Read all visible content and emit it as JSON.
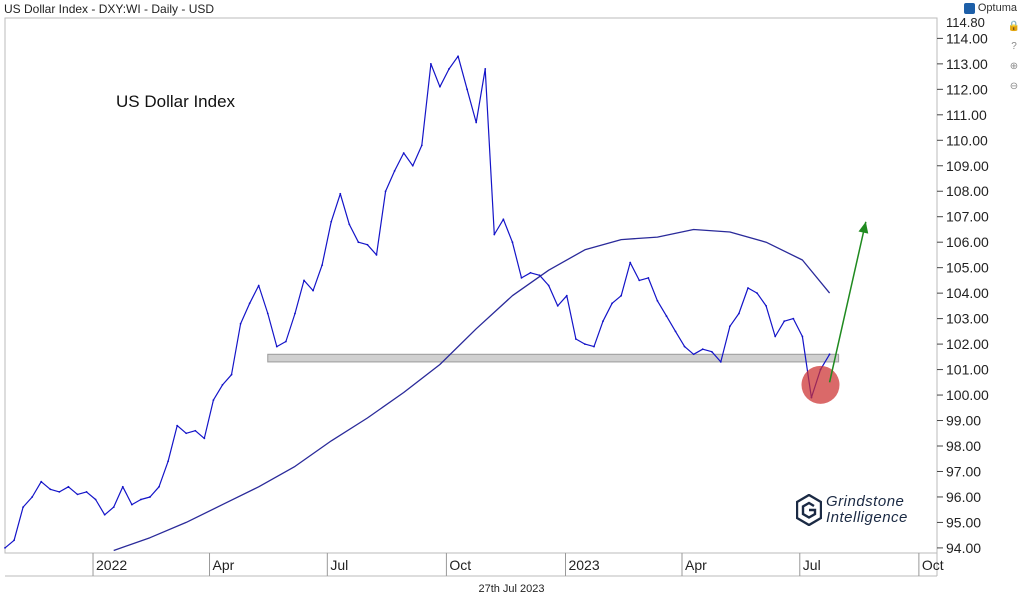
{
  "header": {
    "title": "US Dollar Index - DXY:WI - Daily - USD",
    "brand": "Optuma",
    "brand_icon": "optuma-logo-icon"
  },
  "annotation": "US Dollar Index",
  "watermark": {
    "line1": "Grindstone",
    "line2": "Intelligence"
  },
  "date_label": "27th Jul 2023",
  "side_icons": [
    "lock-icon",
    "question-icon",
    "zoom-in-icon",
    "zoom-out-icon"
  ],
  "chart_data": {
    "type": "line",
    "title": "US Dollar Index - DXY:WI - Daily - USD",
    "series": [
      {
        "kind": "price",
        "color": "#1414c8",
        "points": [
          [
            "2021-10-25",
            94.0
          ],
          [
            "2021-11-01",
            94.3
          ],
          [
            "2021-11-08",
            95.6
          ],
          [
            "2021-11-15",
            96.0
          ],
          [
            "2021-11-22",
            96.6
          ],
          [
            "2021-11-29",
            96.3
          ],
          [
            "2021-12-06",
            96.2
          ],
          [
            "2021-12-13",
            96.4
          ],
          [
            "2021-12-20",
            96.1
          ],
          [
            "2021-12-27",
            96.2
          ],
          [
            "2022-01-03",
            95.9
          ],
          [
            "2022-01-10",
            95.3
          ],
          [
            "2022-01-17",
            95.6
          ],
          [
            "2022-01-24",
            96.4
          ],
          [
            "2022-01-31",
            95.7
          ],
          [
            "2022-02-07",
            95.9
          ],
          [
            "2022-02-14",
            96.0
          ],
          [
            "2022-02-21",
            96.4
          ],
          [
            "2022-02-28",
            97.4
          ],
          [
            "2022-03-07",
            98.8
          ],
          [
            "2022-03-14",
            98.5
          ],
          [
            "2022-03-21",
            98.6
          ],
          [
            "2022-03-28",
            98.3
          ],
          [
            "2022-04-04",
            99.8
          ],
          [
            "2022-04-11",
            100.4
          ],
          [
            "2022-04-18",
            100.8
          ],
          [
            "2022-04-25",
            102.8
          ],
          [
            "2022-05-02",
            103.6
          ],
          [
            "2022-05-09",
            104.3
          ],
          [
            "2022-05-16",
            103.2
          ],
          [
            "2022-05-23",
            101.9
          ],
          [
            "2022-05-30",
            102.1
          ],
          [
            "2022-06-06",
            103.2
          ],
          [
            "2022-06-13",
            104.5
          ],
          [
            "2022-06-20",
            104.1
          ],
          [
            "2022-06-27",
            105.1
          ],
          [
            "2022-07-04",
            106.8
          ],
          [
            "2022-07-11",
            107.9
          ],
          [
            "2022-07-18",
            106.7
          ],
          [
            "2022-07-25",
            106.0
          ],
          [
            "2022-08-01",
            105.9
          ],
          [
            "2022-08-08",
            105.5
          ],
          [
            "2022-08-15",
            108.0
          ],
          [
            "2022-08-22",
            108.8
          ],
          [
            "2022-08-29",
            109.5
          ],
          [
            "2022-09-05",
            109.0
          ],
          [
            "2022-09-12",
            109.8
          ],
          [
            "2022-09-19",
            113.0
          ],
          [
            "2022-09-26",
            112.1
          ],
          [
            "2022-10-03",
            112.8
          ],
          [
            "2022-10-10",
            113.3
          ],
          [
            "2022-10-17",
            112.0
          ],
          [
            "2022-10-24",
            110.7
          ],
          [
            "2022-10-31",
            112.8
          ],
          [
            "2022-11-07",
            106.3
          ],
          [
            "2022-11-14",
            106.9
          ],
          [
            "2022-11-21",
            106.0
          ],
          [
            "2022-11-28",
            104.6
          ],
          [
            "2022-12-05",
            104.8
          ],
          [
            "2022-12-12",
            104.7
          ],
          [
            "2022-12-19",
            104.3
          ],
          [
            "2022-12-26",
            103.5
          ],
          [
            "2023-01-02",
            103.9
          ],
          [
            "2023-01-09",
            102.2
          ],
          [
            "2023-01-16",
            102.0
          ],
          [
            "2023-01-23",
            101.9
          ],
          [
            "2023-01-30",
            102.9
          ],
          [
            "2023-02-06",
            103.6
          ],
          [
            "2023-02-13",
            103.9
          ],
          [
            "2023-02-20",
            105.2
          ],
          [
            "2023-02-27",
            104.5
          ],
          [
            "2023-03-06",
            104.6
          ],
          [
            "2023-03-13",
            103.7
          ],
          [
            "2023-03-20",
            103.1
          ],
          [
            "2023-03-27",
            102.5
          ],
          [
            "2023-04-03",
            101.9
          ],
          [
            "2023-04-10",
            101.6
          ],
          [
            "2023-04-17",
            101.8
          ],
          [
            "2023-04-24",
            101.7
          ],
          [
            "2023-05-01",
            101.3
          ],
          [
            "2023-05-08",
            102.7
          ],
          [
            "2023-05-15",
            103.2
          ],
          [
            "2023-05-22",
            104.2
          ],
          [
            "2023-05-29",
            104.0
          ],
          [
            "2023-06-05",
            103.5
          ],
          [
            "2023-06-12",
            102.3
          ],
          [
            "2023-06-19",
            102.9
          ],
          [
            "2023-06-26",
            103.0
          ],
          [
            "2023-07-03",
            102.3
          ],
          [
            "2023-07-10",
            99.9
          ],
          [
            "2023-07-17",
            101.0
          ],
          [
            "2023-07-24",
            101.6
          ]
        ]
      },
      {
        "kind": "moving-average",
        "color": "#2a2a9a",
        "points": [
          [
            "2022-01-17",
            93.9
          ],
          [
            "2022-02-14",
            94.4
          ],
          [
            "2022-03-14",
            95.0
          ],
          [
            "2022-04-11",
            95.7
          ],
          [
            "2022-05-09",
            96.4
          ],
          [
            "2022-06-06",
            97.2
          ],
          [
            "2022-07-04",
            98.2
          ],
          [
            "2022-08-01",
            99.1
          ],
          [
            "2022-08-29",
            100.1
          ],
          [
            "2022-09-26",
            101.2
          ],
          [
            "2022-10-24",
            102.6
          ],
          [
            "2022-11-21",
            103.9
          ],
          [
            "2022-12-19",
            104.9
          ],
          [
            "2023-01-16",
            105.7
          ],
          [
            "2023-02-13",
            106.1
          ],
          [
            "2023-03-13",
            106.2
          ],
          [
            "2023-04-10",
            106.5
          ],
          [
            "2023-05-08",
            106.4
          ],
          [
            "2023-06-05",
            106.0
          ],
          [
            "2023-07-03",
            105.3
          ],
          [
            "2023-07-24",
            104.0
          ]
        ]
      }
    ],
    "support_band": {
      "from": "2022-05-16",
      "to": "2023-07-31",
      "low": 101.3,
      "high": 101.6,
      "color": "#d0d0d0"
    },
    "highlight_circle": {
      "x": "2023-07-17",
      "y": 100.4,
      "color": "#cc2f2f"
    },
    "arrow": {
      "from": [
        "2023-07-24",
        100.5
      ],
      "to": [
        "2023-08-21",
        106.8
      ],
      "color": "#1f8a1f"
    },
    "x_ticks": [
      {
        "date": "2022-01-01",
        "label": "2022"
      },
      {
        "date": "2022-04-01",
        "label": "Apr"
      },
      {
        "date": "2022-07-01",
        "label": "Jul"
      },
      {
        "date": "2022-10-01",
        "label": "Oct"
      },
      {
        "date": "2023-01-01",
        "label": "2023"
      },
      {
        "date": "2023-04-01",
        "label": "Apr"
      },
      {
        "date": "2023-07-01",
        "label": "Jul"
      },
      {
        "date": "2023-10-01",
        "label": "Oct"
      }
    ],
    "y_ticks": [
      "114.00",
      "113.00",
      "112.00",
      "111.00",
      "110.00",
      "109.00",
      "108.00",
      "107.00",
      "106.00",
      "105.00",
      "104.00",
      "103.00",
      "102.00",
      "101.00",
      "100.00",
      "99.00",
      "98.00",
      "97.00",
      "96.00",
      "95.00",
      "94.00"
    ],
    "y_top_label": "114.80",
    "xlim": [
      "2021-10-25",
      "2023-10-15"
    ],
    "ylim": [
      93.8,
      114.8
    ]
  }
}
